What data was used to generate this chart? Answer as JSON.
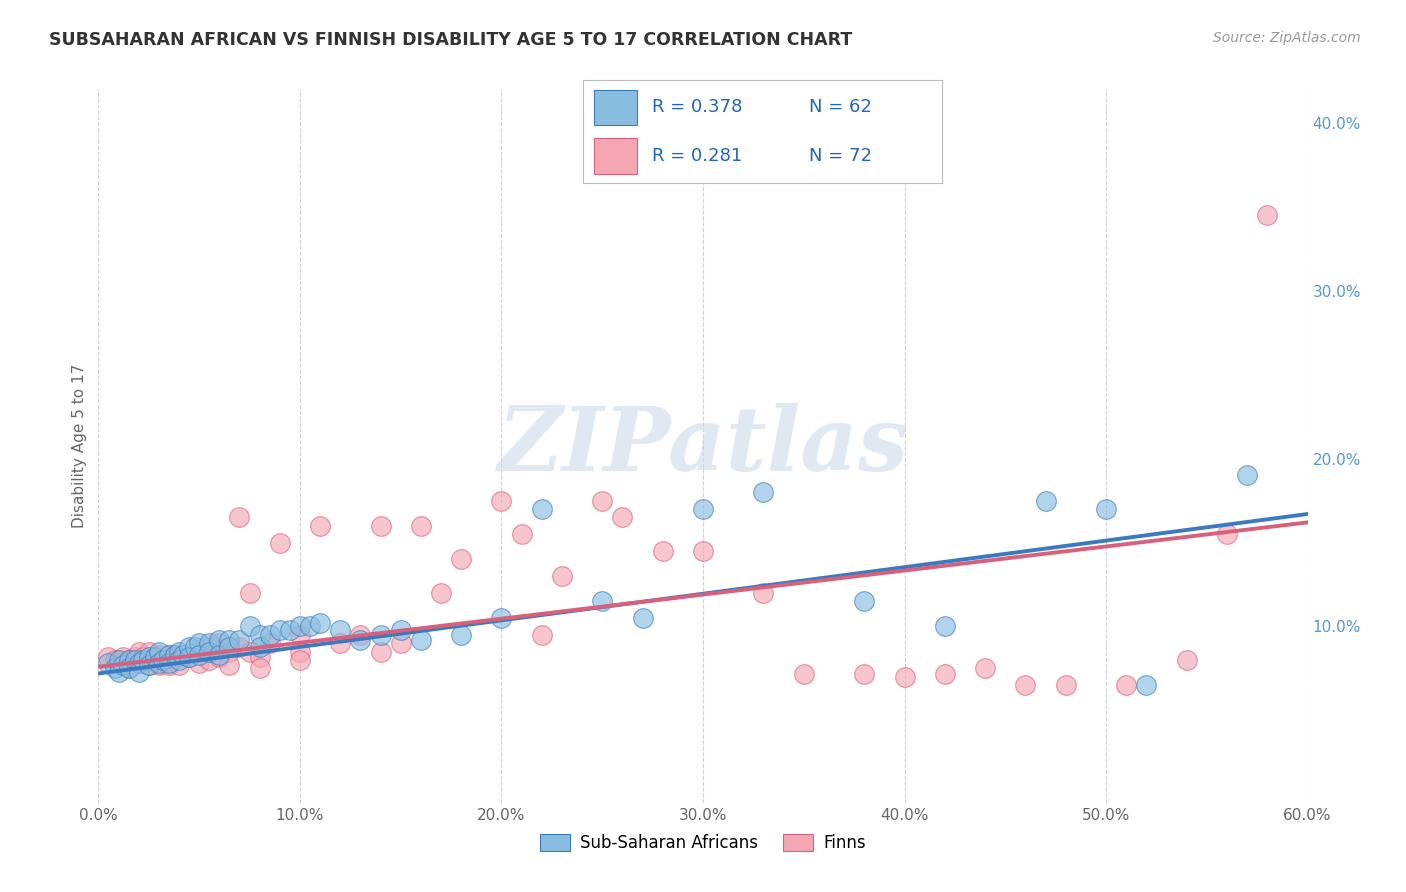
{
  "title": "SUBSAHARAN AFRICAN VS FINNISH DISABILITY AGE 5 TO 17 CORRELATION CHART",
  "source": "Source: ZipAtlas.com",
  "ylabel": "Disability Age 5 to 17",
  "xlim": [
    0.0,
    0.6
  ],
  "ylim": [
    -0.005,
    0.42
  ],
  "xticks": [
    0.0,
    0.1,
    0.2,
    0.3,
    0.4,
    0.5,
    0.6
  ],
  "xticklabels": [
    "0.0%",
    "10.0%",
    "20.0%",
    "30.0%",
    "40.0%",
    "50.0%",
    "60.0%"
  ],
  "yticks_right": [
    0.0,
    0.1,
    0.2,
    0.3,
    0.4
  ],
  "yticklabels_right": [
    "",
    "10.0%",
    "20.0%",
    "30.0%",
    "40.0%"
  ],
  "blue_color": "#89bde0",
  "blue_edge_color": "#3a7abf",
  "pink_color": "#f4a7b3",
  "pink_edge_color": "#d9607a",
  "blue_line_color": "#3a7abf",
  "pink_line_color": "#d9607a",
  "watermark": "ZIPatlas",
  "background_color": "#ffffff",
  "grid_color": "#cccccc",
  "blue_scatter": [
    [
      0.005,
      0.078
    ],
    [
      0.008,
      0.075
    ],
    [
      0.01,
      0.08
    ],
    [
      0.01,
      0.073
    ],
    [
      0.012,
      0.077
    ],
    [
      0.015,
      0.08
    ],
    [
      0.015,
      0.075
    ],
    [
      0.018,
      0.08
    ],
    [
      0.02,
      0.078
    ],
    [
      0.02,
      0.073
    ],
    [
      0.022,
      0.08
    ],
    [
      0.025,
      0.082
    ],
    [
      0.025,
      0.077
    ],
    [
      0.028,
      0.082
    ],
    [
      0.03,
      0.085
    ],
    [
      0.03,
      0.078
    ],
    [
      0.032,
      0.08
    ],
    [
      0.035,
      0.083
    ],
    [
      0.035,
      0.078
    ],
    [
      0.038,
      0.083
    ],
    [
      0.04,
      0.085
    ],
    [
      0.04,
      0.08
    ],
    [
      0.042,
      0.083
    ],
    [
      0.045,
      0.088
    ],
    [
      0.045,
      0.082
    ],
    [
      0.048,
      0.088
    ],
    [
      0.05,
      0.09
    ],
    [
      0.05,
      0.083
    ],
    [
      0.055,
      0.09
    ],
    [
      0.055,
      0.085
    ],
    [
      0.06,
      0.092
    ],
    [
      0.06,
      0.083
    ],
    [
      0.065,
      0.092
    ],
    [
      0.065,
      0.088
    ],
    [
      0.07,
      0.092
    ],
    [
      0.075,
      0.1
    ],
    [
      0.08,
      0.095
    ],
    [
      0.08,
      0.088
    ],
    [
      0.085,
      0.095
    ],
    [
      0.09,
      0.098
    ],
    [
      0.095,
      0.098
    ],
    [
      0.1,
      0.1
    ],
    [
      0.105,
      0.1
    ],
    [
      0.11,
      0.102
    ],
    [
      0.12,
      0.098
    ],
    [
      0.13,
      0.092
    ],
    [
      0.14,
      0.095
    ],
    [
      0.15,
      0.098
    ],
    [
      0.16,
      0.092
    ],
    [
      0.18,
      0.095
    ],
    [
      0.2,
      0.105
    ],
    [
      0.22,
      0.17
    ],
    [
      0.25,
      0.115
    ],
    [
      0.27,
      0.105
    ],
    [
      0.3,
      0.17
    ],
    [
      0.33,
      0.18
    ],
    [
      0.38,
      0.115
    ],
    [
      0.42,
      0.1
    ],
    [
      0.47,
      0.175
    ],
    [
      0.5,
      0.17
    ],
    [
      0.52,
      0.065
    ],
    [
      0.57,
      0.19
    ]
  ],
  "pink_scatter": [
    [
      0.005,
      0.082
    ],
    [
      0.008,
      0.08
    ],
    [
      0.01,
      0.078
    ],
    [
      0.012,
      0.082
    ],
    [
      0.015,
      0.08
    ],
    [
      0.015,
      0.075
    ],
    [
      0.018,
      0.082
    ],
    [
      0.02,
      0.085
    ],
    [
      0.02,
      0.078
    ],
    [
      0.022,
      0.082
    ],
    [
      0.025,
      0.08
    ],
    [
      0.025,
      0.077
    ],
    [
      0.025,
      0.085
    ],
    [
      0.028,
      0.08
    ],
    [
      0.03,
      0.083
    ],
    [
      0.03,
      0.077
    ],
    [
      0.032,
      0.08
    ],
    [
      0.035,
      0.083
    ],
    [
      0.035,
      0.077
    ],
    [
      0.038,
      0.083
    ],
    [
      0.04,
      0.082
    ],
    [
      0.04,
      0.077
    ],
    [
      0.045,
      0.082
    ],
    [
      0.05,
      0.085
    ],
    [
      0.05,
      0.078
    ],
    [
      0.055,
      0.088
    ],
    [
      0.055,
      0.08
    ],
    [
      0.06,
      0.09
    ],
    [
      0.06,
      0.082
    ],
    [
      0.065,
      0.085
    ],
    [
      0.065,
      0.077
    ],
    [
      0.07,
      0.165
    ],
    [
      0.07,
      0.088
    ],
    [
      0.075,
      0.12
    ],
    [
      0.075,
      0.085
    ],
    [
      0.08,
      0.082
    ],
    [
      0.08,
      0.075
    ],
    [
      0.085,
      0.09
    ],
    [
      0.09,
      0.15
    ],
    [
      0.1,
      0.085
    ],
    [
      0.1,
      0.095
    ],
    [
      0.1,
      0.08
    ],
    [
      0.11,
      0.16
    ],
    [
      0.12,
      0.09
    ],
    [
      0.13,
      0.095
    ],
    [
      0.14,
      0.16
    ],
    [
      0.14,
      0.085
    ],
    [
      0.15,
      0.09
    ],
    [
      0.16,
      0.16
    ],
    [
      0.17,
      0.12
    ],
    [
      0.18,
      0.14
    ],
    [
      0.2,
      0.175
    ],
    [
      0.21,
      0.155
    ],
    [
      0.22,
      0.095
    ],
    [
      0.23,
      0.13
    ],
    [
      0.25,
      0.175
    ],
    [
      0.26,
      0.165
    ],
    [
      0.28,
      0.145
    ],
    [
      0.3,
      0.145
    ],
    [
      0.33,
      0.12
    ],
    [
      0.35,
      0.072
    ],
    [
      0.38,
      0.072
    ],
    [
      0.4,
      0.07
    ],
    [
      0.42,
      0.072
    ],
    [
      0.44,
      0.075
    ],
    [
      0.46,
      0.065
    ],
    [
      0.48,
      0.065
    ],
    [
      0.51,
      0.065
    ],
    [
      0.54,
      0.08
    ],
    [
      0.56,
      0.155
    ],
    [
      0.58,
      0.345
    ]
  ],
  "blue_line_x": [
    0.0,
    0.6
  ],
  "blue_line_y": [
    0.072,
    0.167
  ],
  "pink_line_x": [
    0.0,
    0.6
  ],
  "pink_line_y": [
    0.076,
    0.162
  ]
}
